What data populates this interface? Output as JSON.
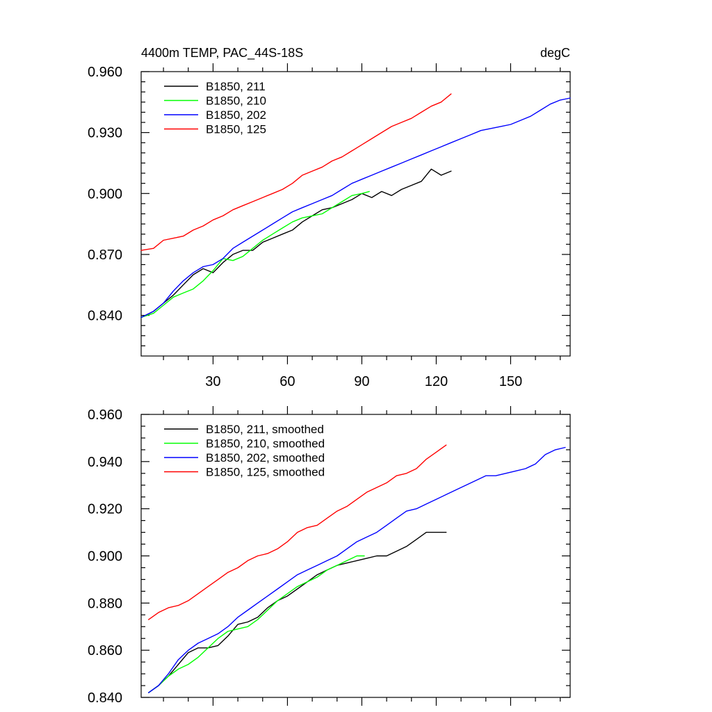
{
  "chart_data": [
    {
      "type": "line",
      "title": "4400m TEMP, PAC_44S-18S",
      "units": "degC",
      "xlim": [
        1,
        174
      ],
      "ylim": [
        0.82,
        0.96
      ],
      "xticks": [
        30,
        60,
        90,
        120,
        150
      ],
      "xtick_labels": [
        "30",
        "60",
        "90",
        "120",
        "150"
      ],
      "xminor": [
        10,
        20,
        40,
        50,
        70,
        80,
        100,
        110,
        130,
        140,
        160,
        170
      ],
      "yticks": [
        0.84,
        0.87,
        0.9,
        0.93,
        0.96
      ],
      "ytick_labels": [
        "0.840",
        "0.870",
        "0.900",
        "0.930",
        "0.960"
      ],
      "yminor": [
        0.825,
        0.83,
        0.835,
        0.845,
        0.85,
        0.855,
        0.86,
        0.865,
        0.875,
        0.88,
        0.885,
        0.89,
        0.895,
        0.905,
        0.91,
        0.915,
        0.92,
        0.925,
        0.935,
        0.94,
        0.945,
        0.95,
        0.955
      ],
      "legend_position": "top-left",
      "series": [
        {
          "name": "B1850, 211",
          "color": "#000000",
          "x": [
            1,
            6,
            10,
            14,
            18,
            22,
            26,
            30,
            34,
            38,
            42,
            46,
            50,
            54,
            58,
            62,
            66,
            70,
            74,
            78,
            82,
            86,
            90,
            94,
            98,
            102,
            106,
            110,
            114,
            118,
            122,
            126
          ],
          "values": [
            0.839,
            0.842,
            0.846,
            0.85,
            0.855,
            0.86,
            0.863,
            0.861,
            0.866,
            0.87,
            0.872,
            0.872,
            0.876,
            0.878,
            0.88,
            0.882,
            0.886,
            0.889,
            0.892,
            0.893,
            0.895,
            0.897,
            0.9,
            0.898,
            0.901,
            0.899,
            0.902,
            0.904,
            0.906,
            0.912,
            0.909,
            0.911
          ]
        },
        {
          "name": "B1850, 210",
          "color": "#00ff00",
          "x": [
            1,
            6,
            10,
            14,
            18,
            22,
            26,
            30,
            34,
            38,
            42,
            46,
            50,
            54,
            58,
            62,
            66,
            70,
            74,
            78,
            82,
            86,
            90,
            93
          ],
          "values": [
            0.839,
            0.841,
            0.845,
            0.849,
            0.851,
            0.853,
            0.857,
            0.862,
            0.868,
            0.867,
            0.869,
            0.873,
            0.877,
            0.88,
            0.883,
            0.886,
            0.888,
            0.889,
            0.89,
            0.893,
            0.896,
            0.899,
            0.9,
            0.901
          ]
        },
        {
          "name": "B1850, 202",
          "color": "#0000ff",
          "x": [
            1,
            6,
            10,
            14,
            18,
            22,
            26,
            30,
            34,
            38,
            42,
            46,
            50,
            54,
            58,
            62,
            66,
            70,
            74,
            78,
            82,
            86,
            90,
            94,
            98,
            102,
            106,
            110,
            114,
            118,
            122,
            126,
            130,
            134,
            138,
            142,
            146,
            150,
            154,
            158,
            162,
            166,
            170,
            174
          ],
          "values": [
            0.839,
            0.842,
            0.846,
            0.852,
            0.857,
            0.861,
            0.864,
            0.865,
            0.868,
            0.873,
            0.876,
            0.879,
            0.882,
            0.885,
            0.888,
            0.891,
            0.893,
            0.895,
            0.897,
            0.899,
            0.902,
            0.905,
            0.907,
            0.909,
            0.911,
            0.913,
            0.915,
            0.917,
            0.919,
            0.921,
            0.923,
            0.925,
            0.927,
            0.929,
            0.931,
            0.932,
            0.933,
            0.934,
            0.936,
            0.938,
            0.941,
            0.944,
            0.946,
            0.947
          ]
        },
        {
          "name": "B1850, 125",
          "color": "#ff0000",
          "x": [
            1,
            6,
            10,
            14,
            18,
            22,
            26,
            30,
            34,
            38,
            42,
            46,
            50,
            54,
            58,
            62,
            66,
            70,
            74,
            78,
            82,
            86,
            90,
            94,
            98,
            102,
            106,
            110,
            114,
            118,
            122,
            126
          ],
          "values": [
            0.872,
            0.873,
            0.877,
            0.878,
            0.879,
            0.882,
            0.884,
            0.887,
            0.889,
            0.892,
            0.894,
            0.896,
            0.898,
            0.9,
            0.902,
            0.905,
            0.909,
            0.911,
            0.913,
            0.916,
            0.918,
            0.921,
            0.924,
            0.927,
            0.93,
            0.933,
            0.935,
            0.937,
            0.94,
            0.943,
            0.945,
            0.949
          ]
        }
      ]
    },
    {
      "type": "line",
      "xlim": [
        1,
        174
      ],
      "ylim": [
        0.84,
        0.96
      ],
      "xticks": [
        30,
        60,
        90,
        120,
        150
      ],
      "xminor": [
        10,
        20,
        40,
        50,
        70,
        80,
        100,
        110,
        130,
        140,
        160,
        170
      ],
      "yticks": [
        0.84,
        0.86,
        0.88,
        0.9,
        0.92,
        0.94,
        0.96
      ],
      "ytick_labels": [
        "0.840",
        "0.860",
        "0.880",
        "0.900",
        "0.920",
        "0.940",
        "0.960"
      ],
      "yminor": [
        0.845,
        0.85,
        0.855,
        0.865,
        0.87,
        0.875,
        0.885,
        0.89,
        0.895,
        0.905,
        0.91,
        0.915,
        0.925,
        0.93,
        0.935,
        0.945,
        0.95,
        0.955
      ],
      "legend_position": "top-left",
      "series": [
        {
          "name": "B1850, 211, smoothed",
          "color": "#000000",
          "x": [
            4,
            8,
            12,
            16,
            20,
            24,
            28,
            32,
            36,
            40,
            44,
            48,
            52,
            56,
            60,
            64,
            68,
            72,
            76,
            80,
            84,
            88,
            92,
            96,
            100,
            104,
            108,
            112,
            116,
            120,
            124
          ],
          "values": [
            0.842,
            0.845,
            0.849,
            0.854,
            0.859,
            0.861,
            0.861,
            0.862,
            0.866,
            0.871,
            0.872,
            0.874,
            0.878,
            0.881,
            0.883,
            0.886,
            0.889,
            0.892,
            0.894,
            0.896,
            0.897,
            0.898,
            0.899,
            0.9,
            0.9,
            0.902,
            0.904,
            0.907,
            0.91,
            0.91,
            0.91
          ]
        },
        {
          "name": "B1850, 210, smoothed",
          "color": "#00ff00",
          "x": [
            4,
            8,
            12,
            16,
            20,
            24,
            28,
            32,
            36,
            40,
            44,
            48,
            52,
            56,
            60,
            64,
            68,
            72,
            76,
            80,
            84,
            88,
            91
          ],
          "values": [
            0.842,
            0.845,
            0.849,
            0.852,
            0.854,
            0.857,
            0.861,
            0.865,
            0.868,
            0.869,
            0.87,
            0.873,
            0.877,
            0.881,
            0.884,
            0.887,
            0.889,
            0.891,
            0.894,
            0.896,
            0.898,
            0.9,
            0.9
          ]
        },
        {
          "name": "B1850, 202, smoothed",
          "color": "#0000ff",
          "x": [
            4,
            8,
            12,
            16,
            20,
            24,
            28,
            32,
            36,
            40,
            44,
            48,
            52,
            56,
            60,
            64,
            68,
            72,
            76,
            80,
            84,
            88,
            92,
            96,
            100,
            104,
            108,
            112,
            116,
            120,
            124,
            128,
            132,
            136,
            140,
            144,
            148,
            152,
            156,
            160,
            164,
            168,
            172
          ],
          "values": [
            0.842,
            0.845,
            0.85,
            0.856,
            0.86,
            0.863,
            0.865,
            0.867,
            0.87,
            0.874,
            0.877,
            0.88,
            0.883,
            0.886,
            0.889,
            0.892,
            0.894,
            0.896,
            0.898,
            0.9,
            0.903,
            0.906,
            0.908,
            0.91,
            0.913,
            0.916,
            0.919,
            0.92,
            0.922,
            0.924,
            0.926,
            0.928,
            0.93,
            0.932,
            0.934,
            0.934,
            0.935,
            0.936,
            0.937,
            0.939,
            0.943,
            0.945,
            0.946
          ]
        },
        {
          "name": "B1850, 125, smoothed",
          "color": "#ff0000",
          "x": [
            4,
            8,
            12,
            16,
            20,
            24,
            28,
            32,
            36,
            40,
            44,
            48,
            52,
            56,
            60,
            64,
            68,
            72,
            76,
            80,
            84,
            88,
            92,
            96,
            100,
            104,
            108,
            112,
            116,
            120,
            124
          ],
          "values": [
            0.873,
            0.876,
            0.878,
            0.879,
            0.881,
            0.884,
            0.887,
            0.89,
            0.893,
            0.895,
            0.898,
            0.9,
            0.901,
            0.903,
            0.906,
            0.91,
            0.912,
            0.913,
            0.916,
            0.919,
            0.921,
            0.924,
            0.927,
            0.929,
            0.931,
            0.934,
            0.935,
            0.937,
            0.941,
            0.944,
            0.947
          ]
        }
      ]
    }
  ]
}
